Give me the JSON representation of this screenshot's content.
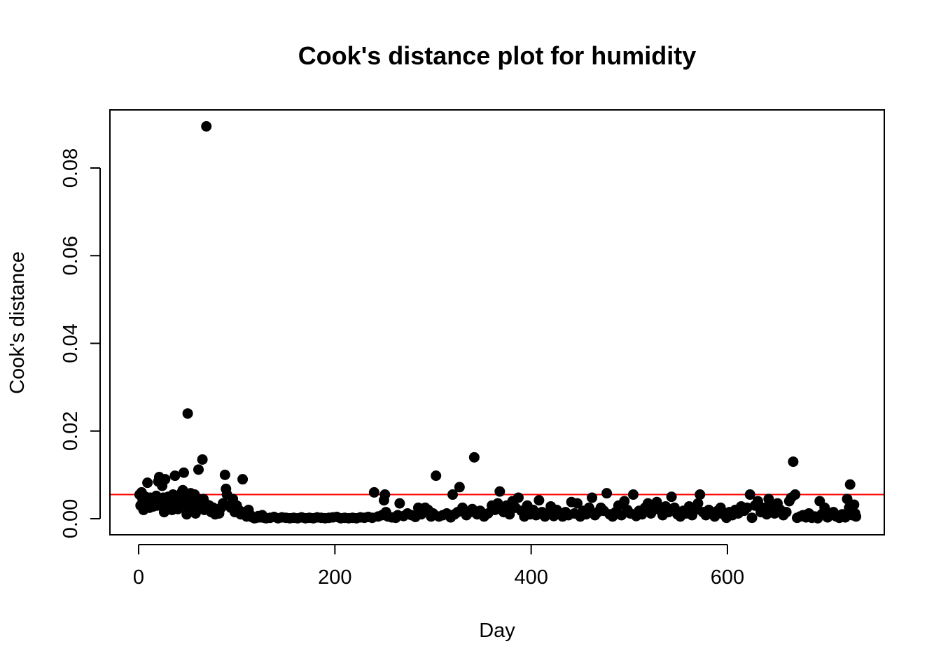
{
  "chart_data": {
    "type": "scatter",
    "title": "Cook's distance plot for humidity",
    "xlabel": "Day",
    "ylabel": "Cook's distance",
    "xlim": [
      0,
      731
    ],
    "ylim": [
      0,
      0.09
    ],
    "x_ticks": [
      0,
      200,
      400,
      600
    ],
    "y_ticks": [
      0.0,
      0.02,
      0.04,
      0.06,
      0.08
    ],
    "x_tick_labels": [
      "0",
      "200",
      "400",
      "600"
    ],
    "y_tick_labels": [
      "0.00",
      "0.02",
      "0.04",
      "0.06",
      "0.08"
    ],
    "threshold": 0.0055,
    "colors": {
      "points": "#000000",
      "threshold_line": "#ff0000",
      "frame": "#000000"
    },
    "grid": false,
    "series": [
      {
        "points": [
          [
            1,
            0.0055
          ],
          [
            2,
            0.003
          ],
          [
            3,
            0.006
          ],
          [
            4,
            0.0045
          ],
          [
            5,
            0.002
          ],
          [
            6,
            0.0035
          ],
          [
            7,
            0.005
          ],
          [
            8,
            0.004
          ],
          [
            9,
            0.0082
          ],
          [
            10,
            0.003
          ],
          [
            11,
            0.0025
          ],
          [
            12,
            0.0048
          ],
          [
            13,
            0.0035
          ],
          [
            14,
            0.0042
          ],
          [
            15,
            0.0028
          ],
          [
            16,
            0.0045
          ],
          [
            17,
            0.0038
          ],
          [
            18,
            0.0052
          ],
          [
            19,
            0.003
          ],
          [
            20,
            0.0085
          ],
          [
            21,
            0.0095
          ],
          [
            22,
            0.0045
          ],
          [
            23,
            0.0032
          ],
          [
            24,
            0.0075
          ],
          [
            25,
            0.0048
          ],
          [
            26,
            0.0015
          ],
          [
            27,
            0.009
          ],
          [
            28,
            0.004
          ],
          [
            29,
            0.0025
          ],
          [
            30,
            0.005
          ],
          [
            31,
            0.0035
          ],
          [
            32,
            0.0028
          ],
          [
            33,
            0.0045
          ],
          [
            34,
            0.002
          ],
          [
            35,
            0.0055
          ],
          [
            36,
            0.004
          ],
          [
            37,
            0.0098
          ],
          [
            38,
            0.003
          ],
          [
            39,
            0.0048
          ],
          [
            40,
            0.0022
          ],
          [
            41,
            0.0052
          ],
          [
            42,
            0.0035
          ],
          [
            43,
            0.0045
          ],
          [
            44,
            0.006
          ],
          [
            45,
            0.0065
          ],
          [
            46,
            0.0105
          ],
          [
            47,
            0.003
          ],
          [
            48,
            0.0055
          ],
          [
            49,
            0.001
          ],
          [
            50,
            0.024
          ],
          [
            51,
            0.0045
          ],
          [
            52,
            0.0025
          ],
          [
            53,
            0.0058
          ],
          [
            54,
            0.0035
          ],
          [
            55,
            0.004
          ],
          [
            56,
            0.002
          ],
          [
            57,
            0.0055
          ],
          [
            58,
            0.0012
          ],
          [
            59,
            0.0048
          ],
          [
            60,
            0.003
          ],
          [
            61,
            0.0112
          ],
          [
            62,
            0.0025
          ],
          [
            63,
            0.0042
          ],
          [
            64,
            0.003
          ],
          [
            65,
            0.0135
          ],
          [
            66,
            0.0045
          ],
          [
            67,
            0.002
          ],
          [
            68,
            0.0035
          ],
          [
            69,
            0.0895
          ],
          [
            70,
            0.0028
          ],
          [
            72,
            0.003
          ],
          [
            74,
            0.0015
          ],
          [
            76,
            0.0025
          ],
          [
            78,
            0.001
          ],
          [
            80,
            0.002
          ],
          [
            82,
            0.0012
          ],
          [
            84,
            0.0025
          ],
          [
            86,
            0.0035
          ],
          [
            88,
            0.01
          ],
          [
            89,
            0.0068
          ],
          [
            90,
            0.0055
          ],
          [
            92,
            0.003
          ],
          [
            94,
            0.0025
          ],
          [
            96,
            0.0045
          ],
          [
            98,
            0.0015
          ],
          [
            100,
            0.003
          ],
          [
            102,
            0.002
          ],
          [
            104,
            0.001
          ],
          [
            106,
            0.009
          ],
          [
            108,
            0.0015
          ],
          [
            110,
            0.0005
          ],
          [
            112,
            0.002
          ],
          [
            114,
            0.0008
          ],
          [
            116,
            0.0003
          ],
          [
            118,
            0.0001
          ],
          [
            120,
            0.0002
          ],
          [
            122,
            0.0006
          ],
          [
            124,
            0.0003
          ],
          [
            126,
            0.0008
          ],
          [
            128,
            0.0002
          ],
          [
            130,
            0.0001
          ],
          [
            134,
            0.0002
          ],
          [
            138,
            0.0004
          ],
          [
            142,
            0.0001
          ],
          [
            146,
            0.0003
          ],
          [
            150,
            0.0002
          ],
          [
            154,
            0.0001
          ],
          [
            158,
            0.0002
          ],
          [
            162,
            0.0001
          ],
          [
            166,
            0.0003
          ],
          [
            170,
            0.0001
          ],
          [
            174,
            0.0002
          ],
          [
            178,
            0.0001
          ],
          [
            182,
            0.0003
          ],
          [
            186,
            0.0002
          ],
          [
            190,
            0.0001
          ],
          [
            194,
            0.0002
          ],
          [
            198,
            0.0003
          ],
          [
            202,
            0.0004
          ],
          [
            206,
            0.0001
          ],
          [
            210,
            0.0002
          ],
          [
            214,
            0.0001
          ],
          [
            218,
            0.0002
          ],
          [
            222,
            0.0001
          ],
          [
            226,
            0.0003
          ],
          [
            230,
            0.0002
          ],
          [
            234,
            0.0004
          ],
          [
            238,
            0.0002
          ],
          [
            240,
            0.006
          ],
          [
            244,
            0.0005
          ],
          [
            248,
            0.0008
          ],
          [
            250,
            0.0042
          ],
          [
            251,
            0.0055
          ],
          [
            252,
            0.0015
          ],
          [
            254,
            0.0005
          ],
          [
            258,
            0.0003
          ],
          [
            262,
            0.0002
          ],
          [
            264,
            0.0008
          ],
          [
            266,
            0.0035
          ],
          [
            270,
            0.0006
          ],
          [
            274,
            0.0012
          ],
          [
            278,
            0.0008
          ],
          [
            282,
            0.0004
          ],
          [
            285,
            0.0025
          ],
          [
            288,
            0.001
          ],
          [
            290,
            0.0018
          ],
          [
            292,
            0.0025
          ],
          [
            295,
            0.002
          ],
          [
            298,
            0.0005
          ],
          [
            300,
            0.0012
          ],
          [
            303,
            0.0098
          ],
          [
            306,
            0.0005
          ],
          [
            310,
            0.0008
          ],
          [
            314,
            0.0012
          ],
          [
            318,
            0.0003
          ],
          [
            320,
            0.0055
          ],
          [
            322,
            0.001
          ],
          [
            325,
            0.0015
          ],
          [
            327,
            0.0072
          ],
          [
            330,
            0.0025
          ],
          [
            334,
            0.0008
          ],
          [
            338,
            0.0015
          ],
          [
            340,
            0.0022
          ],
          [
            342,
            0.014
          ],
          [
            345,
            0.001
          ],
          [
            348,
            0.0018
          ],
          [
            352,
            0.0005
          ],
          [
            356,
            0.0012
          ],
          [
            360,
            0.003
          ],
          [
            363,
            0.002
          ],
          [
            366,
            0.0035
          ],
          [
            368,
            0.0062
          ],
          [
            370,
            0.0025
          ],
          [
            372,
            0.0015
          ],
          [
            375,
            0.003
          ],
          [
            378,
            0.001
          ],
          [
            381,
            0.004
          ],
          [
            384,
            0.0025
          ],
          [
            387,
            0.0048
          ],
          [
            390,
            0.0018
          ],
          [
            393,
            0.0005
          ],
          [
            396,
            0.003
          ],
          [
            399,
            0.001
          ],
          [
            402,
            0.002
          ],
          [
            405,
            0.0008
          ],
          [
            408,
            0.0042
          ],
          [
            411,
            0.0015
          ],
          [
            414,
            0.0005
          ],
          [
            417,
            0.0012
          ],
          [
            420,
            0.0028
          ],
          [
            423,
            0.0006
          ],
          [
            426,
            0.002
          ],
          [
            429,
            0.001
          ],
          [
            432,
            0.0005
          ],
          [
            435,
            0.0015
          ],
          [
            438,
            0.0008
          ],
          [
            441,
            0.0038
          ],
          [
            444,
            0.0012
          ],
          [
            447,
            0.0035
          ],
          [
            450,
            0.0005
          ],
          [
            453,
            0.0018
          ],
          [
            456,
            0.001
          ],
          [
            459,
            0.0025
          ],
          [
            462,
            0.0048
          ],
          [
            465,
            0.0008
          ],
          [
            468,
            0.0015
          ],
          [
            471,
            0.0025
          ],
          [
            474,
            0.0018
          ],
          [
            477,
            0.0058
          ],
          [
            480,
            0.001
          ],
          [
            483,
            0.0005
          ],
          [
            486,
            0.0015
          ],
          [
            489,
            0.003
          ],
          [
            492,
            0.0008
          ],
          [
            495,
            0.004
          ],
          [
            498,
            0.002
          ],
          [
            501,
            0.0012
          ],
          [
            504,
            0.0055
          ],
          [
            507,
            0.0006
          ],
          [
            510,
            0.0018
          ],
          [
            513,
            0.001
          ],
          [
            516,
            0.0025
          ],
          [
            519,
            0.0035
          ],
          [
            522,
            0.0012
          ],
          [
            525,
            0.003
          ],
          [
            528,
            0.0038
          ],
          [
            531,
            0.002
          ],
          [
            534,
            0.0008
          ],
          [
            537,
            0.0028
          ],
          [
            540,
            0.0015
          ],
          [
            543,
            0.005
          ],
          [
            546,
            0.0025
          ],
          [
            549,
            0.001
          ],
          [
            552,
            0.0005
          ],
          [
            555,
            0.0018
          ],
          [
            558,
            0.0012
          ],
          [
            561,
            0.0028
          ],
          [
            564,
            0.0008
          ],
          [
            567,
            0.002
          ],
          [
            570,
            0.0035
          ],
          [
            572,
            0.0055
          ],
          [
            575,
            0.0015
          ],
          [
            578,
            0.0008
          ],
          [
            581,
            0.002
          ],
          [
            584,
            0.0012
          ],
          [
            587,
            0.0005
          ],
          [
            590,
            0.0018
          ],
          [
            593,
            0.0025
          ],
          [
            596,
            0.001
          ],
          [
            599,
            0.0002
          ],
          [
            602,
            0.0015
          ],
          [
            605,
            0.0008
          ],
          [
            608,
            0.002
          ],
          [
            611,
            0.0012
          ],
          [
            614,
            0.0028
          ],
          [
            617,
            0.0018
          ],
          [
            620,
            0.0025
          ],
          [
            623,
            0.0055
          ],
          [
            625,
            0.0002
          ],
          [
            628,
            0.003
          ],
          [
            631,
            0.004
          ],
          [
            634,
            0.0015
          ],
          [
            637,
            0.0025
          ],
          [
            640,
            0.001
          ],
          [
            642,
            0.0045
          ],
          [
            645,
            0.003
          ],
          [
            648,
            0.0012
          ],
          [
            651,
            0.0035
          ],
          [
            654,
            0.002
          ],
          [
            657,
            0.0008
          ],
          [
            660,
            0.0015
          ],
          [
            663,
            0.004
          ],
          [
            665,
            0.0048
          ],
          [
            667,
            0.013
          ],
          [
            669,
            0.0055
          ],
          [
            671,
            0.0002
          ],
          [
            674,
            0.0005
          ],
          [
            677,
            0.0008
          ],
          [
            680,
            0.0003
          ],
          [
            683,
            0.0012
          ],
          [
            686,
            0.0002
          ],
          [
            689,
            0.0005
          ],
          [
            692,
            0.0001
          ],
          [
            694,
            0.004
          ],
          [
            696,
            0.001
          ],
          [
            699,
            0.0025
          ],
          [
            702,
            0.0003
          ],
          [
            705,
            0.0008
          ],
          [
            708,
            0.0015
          ],
          [
            711,
            0.0005
          ],
          [
            714,
            0.0002
          ],
          [
            717,
            0.001
          ],
          [
            720,
            0.0003
          ],
          [
            722,
            0.0045
          ],
          [
            724,
            0.0025
          ],
          [
            725,
            0.0078
          ],
          [
            727,
            0.0008
          ],
          [
            729,
            0.0032
          ],
          [
            730,
            0.0012
          ],
          [
            731,
            0.0005
          ]
        ]
      }
    ]
  }
}
